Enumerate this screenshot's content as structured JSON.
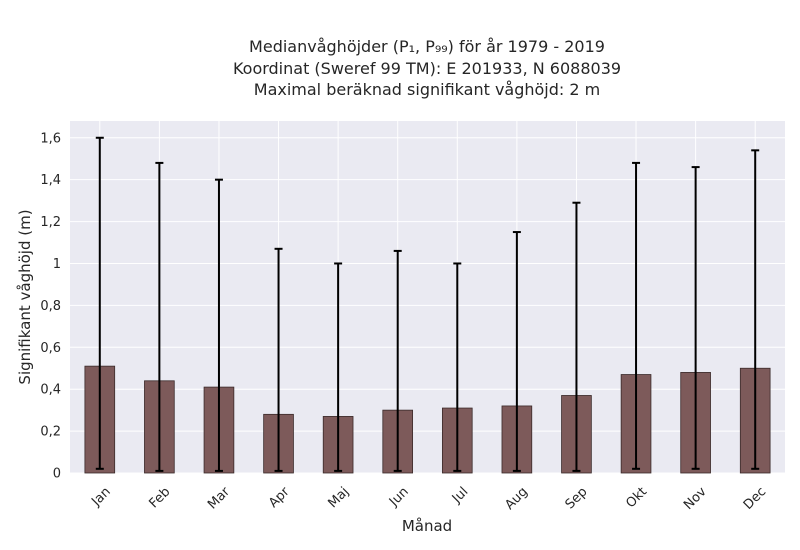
{
  "chart_data": {
    "type": "bar",
    "title_lines": [
      "Medianvåghöjder (P₁, P₉₉) för år 1979 - 2019",
      "Koordinat (Sweref 99 TM): E 201933, N 6088039",
      "Maximal beräknad signifikant våghöjd: 2 m"
    ],
    "xlabel": "Månad",
    "ylabel": "Signifikant våghöjd (m)",
    "categories": [
      "Jan",
      "Feb",
      "Mar",
      "Apr",
      "Maj",
      "Jun",
      "Jul",
      "Aug",
      "Sep",
      "Okt",
      "Nov",
      "Dec"
    ],
    "values": [
      0.51,
      0.44,
      0.41,
      0.28,
      0.27,
      0.3,
      0.31,
      0.32,
      0.37,
      0.47,
      0.48,
      0.5
    ],
    "lower": [
      0.02,
      0.01,
      0.01,
      0.01,
      0.01,
      0.01,
      0.01,
      0.01,
      0.01,
      0.02,
      0.02,
      0.02
    ],
    "upper": [
      1.6,
      1.48,
      1.4,
      1.07,
      1.0,
      1.06,
      1.0,
      1.15,
      1.29,
      1.48,
      1.46,
      1.54
    ],
    "ylim": [
      0,
      1.68
    ],
    "yticks": [
      0,
      0.2,
      0.4,
      0.6,
      0.8,
      1,
      1.2,
      1.4,
      1.6
    ],
    "ytick_labels": [
      "0",
      "0,2",
      "0,4",
      "0,6",
      "0,8",
      "1",
      "1,2",
      "1,4",
      "1,6"
    ],
    "grid": true,
    "colors": {
      "bar": "#7d5a5a",
      "bar_edge": "#3a2a2a",
      "error_bar": "#000000",
      "plot_background": "#eaeaf2",
      "grid": "#ffffff"
    }
  }
}
